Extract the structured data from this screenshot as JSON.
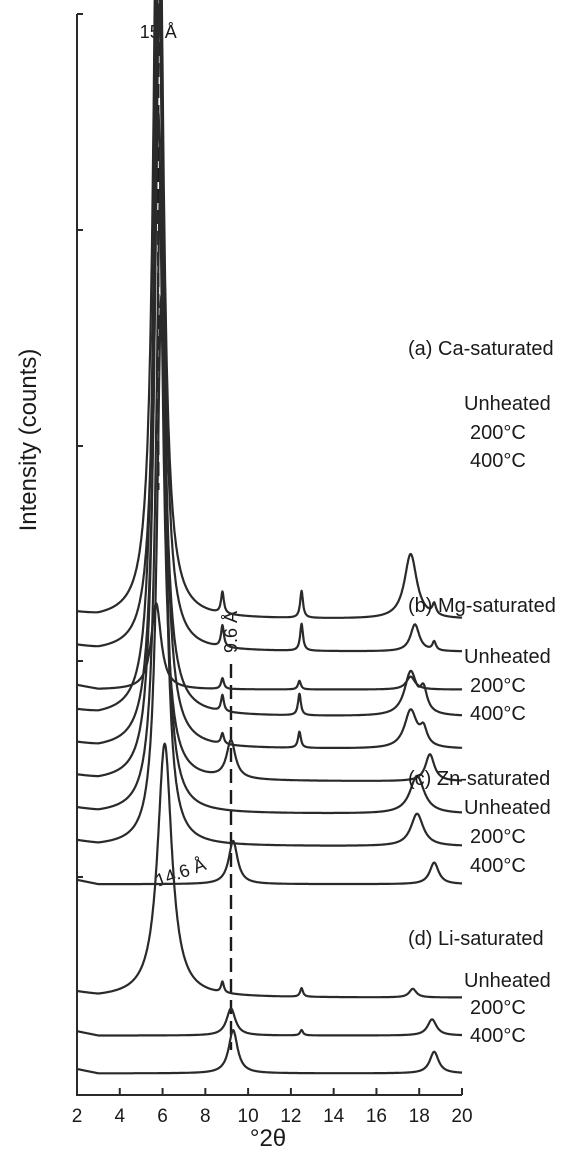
{
  "chart_data": {
    "type": "line",
    "subtype": "stacked XRD patterns",
    "title": "",
    "xlabel": "°2θ",
    "ylabel": "Intensity (counts)",
    "xlim": [
      2,
      20
    ],
    "x_ticks": [
      "2",
      "4",
      "6",
      "8",
      "10",
      "12",
      "14",
      "16",
      "18",
      "20"
    ],
    "y_tick_labels": "none",
    "grid": false,
    "legend": "none",
    "reference_lines": [
      {
        "label": "15 Å",
        "x": 5.8
      },
      {
        "label": "9.6 Å",
        "x": 9.2
      },
      {
        "label": "14.6 Å",
        "x": 6.1
      }
    ],
    "groups": [
      {
        "label": "(a) Ca-saturated",
        "series": [
          {
            "name": "Unheated",
            "baseline": 0.44,
            "peaks": [
              [
                5.8,
                0.83,
                0.25
              ],
              [
                8.8,
                0.02,
                0.08
              ],
              [
                12.5,
                0.025,
                0.08
              ],
              [
                17.6,
                0.06,
                0.35
              ],
              [
                18.7,
                0.01,
                0.1
              ]
            ]
          },
          {
            "name": "200°C",
            "baseline": 0.41,
            "peaks": [
              [
                5.85,
                0.67,
                0.25
              ],
              [
                8.8,
                0.02,
                0.08
              ],
              [
                12.5,
                0.025,
                0.08
              ],
              [
                17.8,
                0.025,
                0.25
              ],
              [
                18.7,
                0.008,
                0.1
              ]
            ]
          },
          {
            "name": "400°C",
            "baseline": 0.375,
            "peaks": [
              [
                5.7,
                0.08,
                0.28
              ],
              [
                8.8,
                0.01,
                0.08
              ],
              [
                12.4,
                0.008,
                0.08
              ],
              [
                17.6,
                0.012,
                0.25
              ]
            ]
          }
        ]
      },
      {
        "label": "(b) Mg-saturated",
        "series": [
          {
            "name": "Unheated",
            "baseline": 0.35,
            "peaks": [
              [
                5.8,
                0.74,
                0.25
              ],
              [
                8.8,
                0.015,
                0.08
              ],
              [
                12.4,
                0.02,
                0.08
              ],
              [
                17.6,
                0.04,
                0.35
              ],
              [
                18.2,
                0.02,
                0.2
              ]
            ]
          },
          {
            "name": "200°C",
            "baseline": 0.32,
            "peaks": [
              [
                5.85,
                0.69,
                0.25
              ],
              [
                8.8,
                0.01,
                0.08
              ],
              [
                12.4,
                0.015,
                0.08
              ],
              [
                17.6,
                0.035,
                0.35
              ],
              [
                18.2,
                0.015,
                0.2
              ]
            ]
          },
          {
            "name": "400°C",
            "baseline": 0.29,
            "peaks": [
              [
                5.8,
                0.62,
                0.25
              ],
              [
                9.2,
                0.035,
                0.25
              ],
              [
                18.5,
                0.025,
                0.25
              ]
            ]
          }
        ]
      },
      {
        "label": "(c) Zn-saturated",
        "series": [
          {
            "name": "Unheated",
            "baseline": 0.26,
            "peaks": [
              [
                5.9,
                0.58,
                0.25
              ],
              [
                17.9,
                0.035,
                0.4
              ]
            ]
          },
          {
            "name": "200°C",
            "baseline": 0.23,
            "peaks": [
              [
                5.95,
                0.51,
                0.25
              ],
              [
                17.9,
                0.03,
                0.35
              ]
            ]
          },
          {
            "name": "400°C",
            "baseline": 0.195,
            "peaks": [
              [
                9.3,
                0.04,
                0.25
              ],
              [
                18.7,
                0.02,
                0.25
              ]
            ]
          }
        ]
      },
      {
        "label": "(d) Li-saturated",
        "series": [
          {
            "name": "Unheated",
            "baseline": 0.09,
            "peaks": [
              [
                6.1,
                0.235,
                0.4
              ],
              [
                8.8,
                0.01,
                0.08
              ],
              [
                12.5,
                0.008,
                0.08
              ],
              [
                17.7,
                0.008,
                0.2
              ]
            ]
          },
          {
            "name": "200°C",
            "baseline": 0.055,
            "peaks": [
              [
                9.2,
                0.025,
                0.25
              ],
              [
                12.5,
                0.005,
                0.08
              ],
              [
                18.6,
                0.015,
                0.25
              ]
            ]
          },
          {
            "name": "400°C",
            "baseline": 0.02,
            "peaks": [
              [
                9.3,
                0.04,
                0.25
              ],
              [
                18.7,
                0.02,
                0.25
              ]
            ]
          }
        ]
      }
    ]
  }
}
